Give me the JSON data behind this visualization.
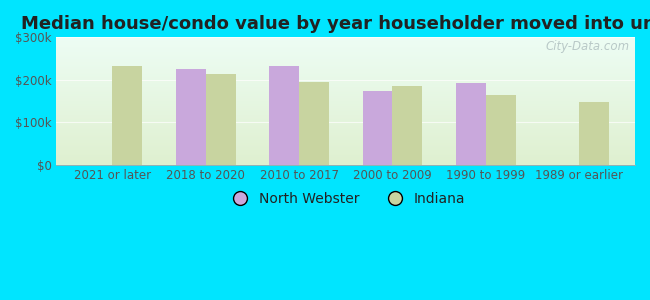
{
  "categories": [
    "2021 or later",
    "2018 to 2020",
    "2010 to 2017",
    "2000 to 2009",
    "1990 to 1999",
    "1989 or earlier"
  ],
  "north_webster": [
    null,
    225000,
    232000,
    173000,
    192000,
    null
  ],
  "indiana": [
    232000,
    213000,
    195000,
    185000,
    165000,
    148000
  ],
  "color_nw": "#c9a8dc",
  "color_in": "#c8d4a0",
  "title": "Median house/condo value by year householder moved into unit",
  "legend_nw": "North Webster",
  "legend_in": "Indiana",
  "ylim": [
    0,
    300000
  ],
  "yticks": [
    0,
    100000,
    200000,
    300000
  ],
  "fig_bg": "#00e5ff",
  "plot_bg_top": "#edfdf4",
  "plot_bg_bottom": "#dff0d0",
  "bar_width": 0.32,
  "title_fontsize": 13,
  "tick_fontsize": 8.5,
  "legend_fontsize": 10,
  "watermark_text": "City-Data.com"
}
